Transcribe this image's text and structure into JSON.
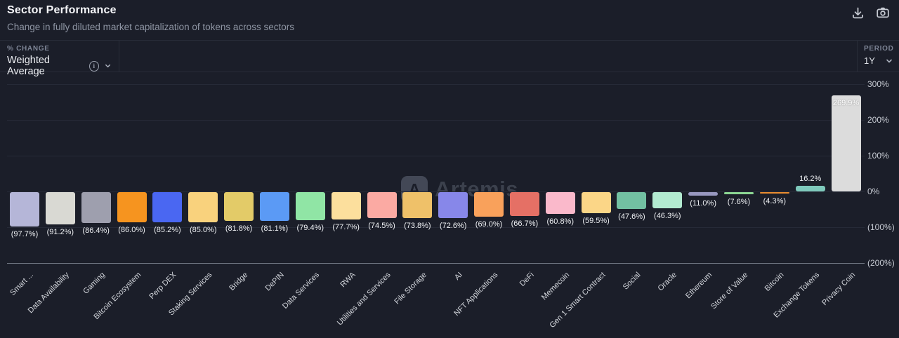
{
  "header": {
    "title": "Sector Performance",
    "subtitle": "Change in fully diluted market capitalization of tokens across sectors"
  },
  "toolbar_icons": {
    "download": "download-icon",
    "camera": "camera-icon"
  },
  "controls": {
    "metric_label": "% CHANGE",
    "metric_value": "Weighted Average",
    "metric_info_icon": "info-icon",
    "period_label": "PERIOD",
    "period_value": "1Y"
  },
  "watermark": {
    "text": "Artemis"
  },
  "chart_data": {
    "type": "bar",
    "title": "Sector Performance",
    "xlabel": "",
    "ylabel": "% Change",
    "ylim": [
      -200,
      300
    ],
    "grid": true,
    "legend_position": "none",
    "y_ticks": [
      {
        "label": "300%",
        "value": 300
      },
      {
        "label": "200%",
        "value": 200
      },
      {
        "label": "100%",
        "value": 100
      },
      {
        "label": "0%",
        "value": 0
      },
      {
        "label": "(100%)",
        "value": -100
      },
      {
        "label": "(200%)",
        "value": -200
      }
    ],
    "categories": [
      "Smart ...",
      "Data Availability",
      "Gaming",
      "Bitcoin Ecosystem",
      "Perp DEX",
      "Staking Services",
      "Bridge",
      "DePIN",
      "Data Services",
      "RWA",
      "Utilities and Services",
      "File Storage",
      "AI",
      "NFT Applications",
      "DeFi",
      "Memecoin",
      "Gen 1 Smart Contract",
      "Social",
      "Oracle",
      "Ethereum",
      "Store of Value",
      "Bitcoin",
      "Exchange Tokens",
      "Privacy Coin"
    ],
    "values": [
      -97.7,
      -91.2,
      -86.4,
      -86.0,
      -85.2,
      -85.0,
      -81.8,
      -81.1,
      -79.4,
      -77.7,
      -74.5,
      -73.8,
      -72.6,
      -69.0,
      -66.7,
      -60.8,
      -59.5,
      -47.6,
      -46.3,
      -11.0,
      -7.6,
      -4.3,
      16.2,
      269.9
    ],
    "value_labels": [
      "(97.7%)",
      "(91.2%)",
      "(86.4%)",
      "(86.0%)",
      "(85.2%)",
      "(85.0%)",
      "(81.8%)",
      "(81.1%)",
      "(79.4%)",
      "(77.7%)",
      "(74.5%)",
      "(73.8%)",
      "(72.6%)",
      "(69.0%)",
      "(66.7%)",
      "(60.8%)",
      "(59.5%)",
      "(47.6%)",
      "(46.3%)",
      "(11.0%)",
      "(7.6%)",
      "(4.3%)",
      "16.2%",
      "269.9%"
    ],
    "colors": [
      "#b5b6d8",
      "#d9d9d3",
      "#9e9fae",
      "#f6941f",
      "#4a67f2",
      "#f9d27d",
      "#e3cb68",
      "#5b9af5",
      "#90e5a5",
      "#fcdf9d",
      "#fbaaa3",
      "#efc169",
      "#8787e9",
      "#f9a15b",
      "#e57065",
      "#fab9cb",
      "#fbd687",
      "#72c0a2",
      "#b2ead0",
      "#9898c0",
      "#8cd793",
      "#e98c30",
      "#7fc9bc",
      "#dcdcdc"
    ]
  }
}
